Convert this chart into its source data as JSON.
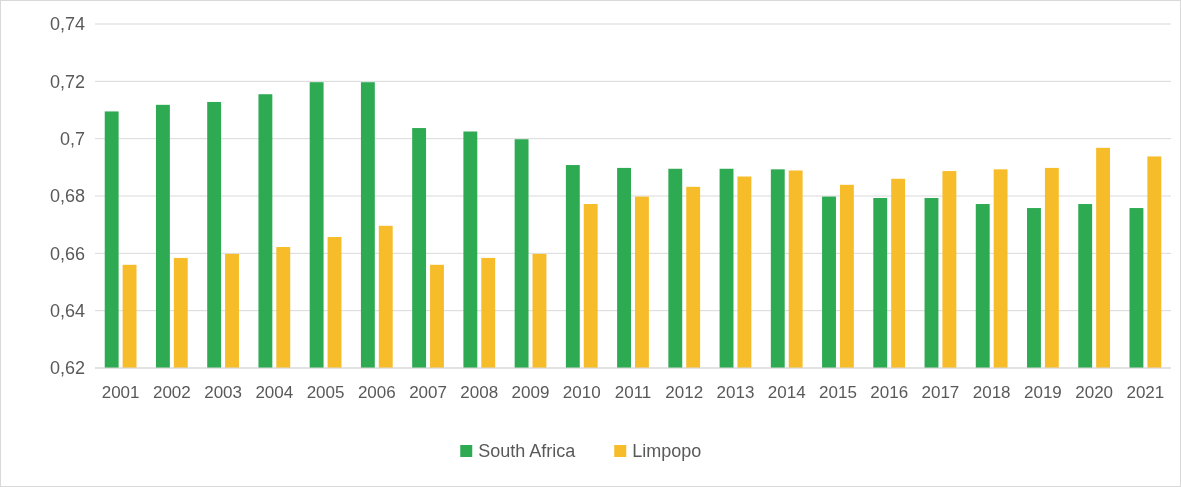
{
  "chart_data": {
    "type": "bar",
    "categories": [
      "2001",
      "2002",
      "2003",
      "2004",
      "2005",
      "2006",
      "2007",
      "2008",
      "2009",
      "2010",
      "2011",
      "2012",
      "2013",
      "2014",
      "2015",
      "2016",
      "2017",
      "2018",
      "2019",
      "2020",
      "2021"
    ],
    "series": [
      {
        "name": "South Africa",
        "color": "#2eaa53",
        "values": [
          0.7095,
          0.7118,
          0.7128,
          0.7155,
          0.7197,
          0.7197,
          0.7037,
          0.7025,
          0.6998,
          0.6908,
          0.6898,
          0.6895,
          0.6895,
          0.6893,
          0.6798,
          0.6793,
          0.6793,
          0.6772,
          0.6758,
          0.6772,
          0.6758
        ]
      },
      {
        "name": "Limpopo",
        "color": "#f7bc2a",
        "values": [
          0.656,
          0.6584,
          0.6598,
          0.6622,
          0.6657,
          0.6696,
          0.656,
          0.6584,
          0.6598,
          0.6772,
          0.6798,
          0.6832,
          0.6868,
          0.6889,
          0.6839,
          0.686,
          0.6887,
          0.6893,
          0.6898,
          0.6968,
          0.6938
        ]
      }
    ],
    "ylim": [
      0.62,
      0.74
    ],
    "yticks": [
      {
        "value": 0.62,
        "label": "0,62"
      },
      {
        "value": 0.64,
        "label": "0,64"
      },
      {
        "value": 0.66,
        "label": "0,66"
      },
      {
        "value": 0.68,
        "label": "0,68"
      },
      {
        "value": 0.7,
        "label": "0,7"
      },
      {
        "value": 0.72,
        "label": "0,72"
      },
      {
        "value": 0.74,
        "label": "0,74"
      }
    ],
    "grid": "y",
    "legend": "bottom"
  }
}
